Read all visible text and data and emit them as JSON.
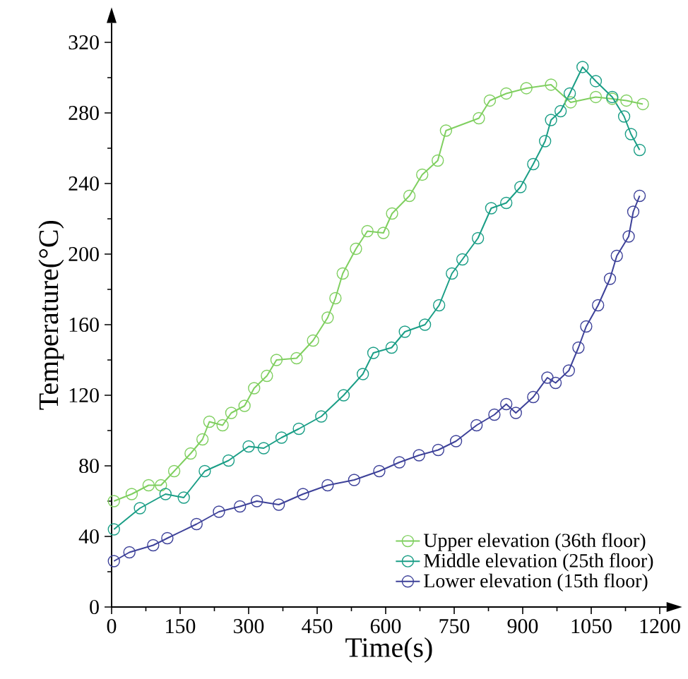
{
  "chart_data": {
    "type": "line",
    "xlabel": "Time(s)",
    "ylabel": "Temperature(°C)",
    "xlim": [
      0,
      1215
    ],
    "ylim": [
      0,
      331
    ],
    "xticks": [
      0,
      150,
      300,
      450,
      600,
      750,
      900,
      1050,
      1200
    ],
    "yticks": [
      0,
      40,
      80,
      120,
      160,
      200,
      240,
      280,
      320
    ],
    "grid": false,
    "legend": "bottom right",
    "marker": "circle",
    "line_style": "solid",
    "series": [
      {
        "name": "Upper elevation (36th floor)",
        "color": "#7fcf5f",
        "x": [
          5,
          44,
          81,
          108,
          137,
          173,
          199,
          214,
          243,
          262,
          291,
          312,
          340,
          361,
          405,
          441,
          473,
          490,
          506,
          535,
          560,
          595,
          614,
          652,
          680,
          714,
          732,
          804,
          828,
          864,
          908,
          962,
          1005,
          1060,
          1096,
          1127,
          1163
        ],
        "values": [
          60,
          64,
          69,
          69,
          77,
          87,
          95,
          105,
          103,
          110,
          114,
          124,
          131,
          140,
          141,
          151,
          164,
          175,
          189,
          203,
          213,
          212,
          223,
          233,
          245,
          253,
          270,
          277,
          287,
          291,
          294,
          296,
          286,
          289,
          288,
          287,
          285
        ]
      },
      {
        "name": "Middle elevation (25th floor)",
        "color": "#1a9e86",
        "x": [
          5,
          62,
          118,
          158,
          204,
          256,
          300,
          333,
          372,
          410,
          459,
          508,
          550,
          573,
          613,
          642,
          686,
          717,
          745,
          768,
          802,
          831,
          864,
          895,
          923,
          949,
          962,
          983,
          1003,
          1031,
          1060,
          1096,
          1122,
          1137,
          1156
        ],
        "values": [
          44,
          56,
          64,
          62,
          77,
          83,
          91,
          90,
          96,
          101,
          108,
          120,
          132,
          144,
          147,
          156,
          160,
          171,
          189,
          197,
          209,
          226,
          229,
          238,
          251,
          264,
          276,
          281,
          291,
          306,
          298,
          289,
          278,
          268,
          259
        ]
      },
      {
        "name": "Lower elevation (15th floor)",
        "color": "#3d4199",
        "x": [
          5,
          39,
          91,
          122,
          186,
          235,
          281,
          318,
          366,
          419,
          473,
          531,
          586,
          630,
          673,
          715,
          754,
          799,
          838,
          864,
          885,
          923,
          954,
          972,
          1001,
          1022,
          1039,
          1065,
          1091,
          1106,
          1132,
          1142,
          1156
        ],
        "values": [
          26,
          31,
          35,
          39,
          47,
          54,
          57,
          60,
          58,
          64,
          69,
          72,
          77,
          82,
          86,
          89,
          94,
          103,
          109,
          115,
          110,
          119,
          130,
          127,
          134,
          147,
          159,
          171,
          186,
          199,
          210,
          224,
          233
        ]
      }
    ]
  }
}
